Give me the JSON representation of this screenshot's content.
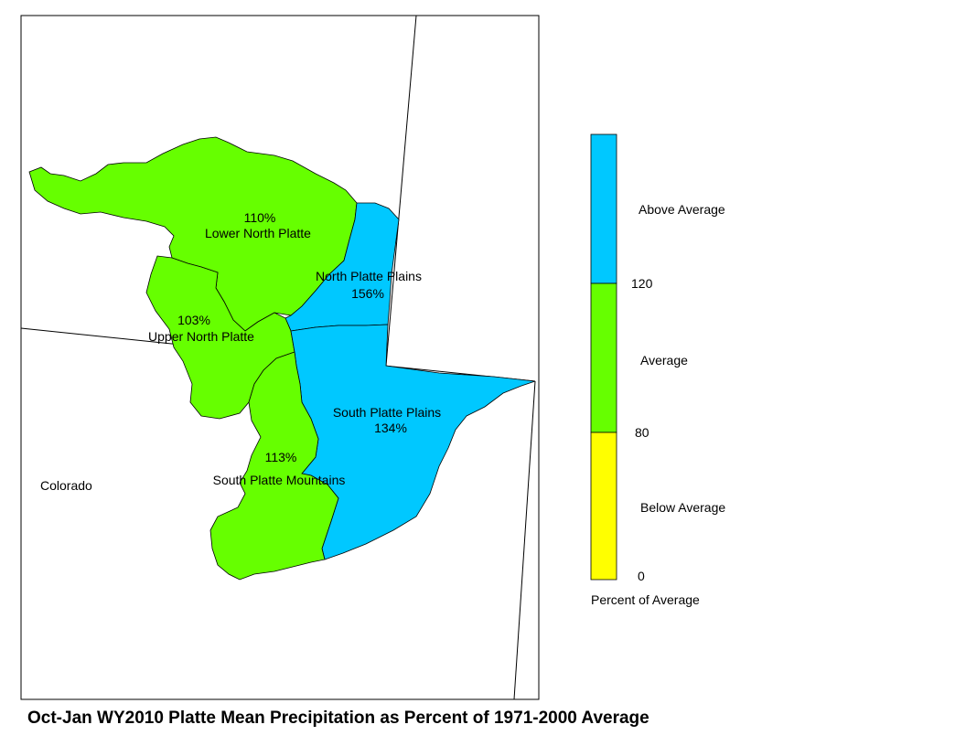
{
  "title": "Oct-Jan WY2010 Platte Mean Precipitation as Percent of 1971-2000 Average",
  "state_label": "Colorado",
  "basins": [
    {
      "name": "Lower North Platte",
      "percent": "110%",
      "category": "average"
    },
    {
      "name": "North Platte Plains",
      "percent": "156%",
      "category": "above"
    },
    {
      "name": "Upper North Platte",
      "percent": "103%",
      "category": "average"
    },
    {
      "name": "South Platte Plains",
      "percent": "134%",
      "category": "above"
    },
    {
      "name": "South Platte Mountains",
      "percent": "113%",
      "category": "average"
    }
  ],
  "colors": {
    "above": "#00c8ff",
    "average": "#66ff00",
    "below": "#ffff00"
  },
  "legend": {
    "categories": [
      {
        "label": "Above Average",
        "color": "#00c8ff"
      },
      {
        "label": "Average",
        "color": "#66ff00"
      },
      {
        "label": "Below Average",
        "color": "#ffff00"
      }
    ],
    "ticks": [
      "120",
      "80",
      "0"
    ],
    "caption": "Percent of Average"
  }
}
